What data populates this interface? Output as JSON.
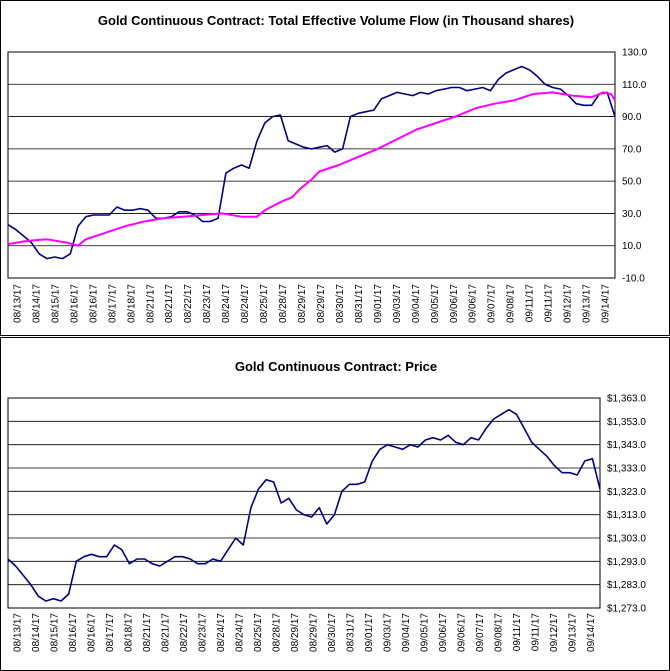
{
  "chart_data": [
    {
      "type": "line",
      "title": "Gold Continuous Contract: Total Effective Volume Flow (in Thousand shares)",
      "ylim": [
        -10,
        130
      ],
      "yticks": [
        -10,
        10,
        30,
        50,
        70,
        90,
        110,
        130
      ],
      "ytick_labels": [
        "-10.0",
        "10.0",
        "30.0",
        "50.0",
        "70.0",
        "90.0",
        "110.0",
        "130.0"
      ],
      "x_tick_labels": [
        "08/13/17",
        "08/14/17",
        "08/15/17",
        "08/16/17",
        "08/16/17",
        "08/17/17",
        "08/18/17",
        "08/21/17",
        "08/21/17",
        "08/22/17",
        "08/23/17",
        "08/24/17",
        "08/24/17",
        "08/25/17",
        "08/28/17",
        "08/29/17",
        "08/29/17",
        "08/30/17",
        "08/31/17",
        "09/01/17",
        "09/03/17",
        "09/04/17",
        "09/05/17",
        "09/06/17",
        "09/06/17",
        "09/07/17",
        "09/08/17",
        "09/11/17",
        "09/11/17",
        "09/12/17",
        "09/13/17",
        "09/14/17"
      ],
      "grid": true,
      "series": [
        {
          "color": "#000080",
          "x": [
            0,
            0.4,
            0.8,
            1.2,
            1.6,
            2.0,
            2.4,
            2.8,
            3.2,
            3.6,
            4.0,
            4.4,
            4.8,
            5.2,
            5.6,
            6.0,
            6.4,
            6.8,
            7.2,
            7.6,
            8.0,
            8.4,
            8.8,
            9.2,
            9.6,
            10.0,
            10.4,
            10.8,
            11.2,
            11.6,
            12.0,
            12.4,
            12.8,
            13.2,
            13.6,
            14.0,
            14.4,
            14.8,
            15.2,
            15.6,
            16.0,
            16.4,
            16.8,
            17.2,
            17.6,
            18.0,
            18.4,
            18.8,
            19.2,
            19.6,
            20.0,
            20.4,
            20.8,
            21.2,
            21.6,
            22.0,
            22.4,
            22.8,
            23.2,
            23.6,
            24.0,
            24.4,
            24.8,
            25.2,
            25.6,
            26.0,
            26.4,
            26.8,
            27.2,
            27.6,
            28.0,
            28.4,
            28.8,
            29.2,
            29.6,
            30.0,
            30.4,
            30.8,
            31.2
          ],
          "values": [
            23,
            20,
            16,
            12,
            5,
            2,
            3,
            2,
            5,
            22,
            28,
            29,
            29,
            29,
            34,
            32,
            32,
            33,
            32,
            27,
            27,
            28,
            31,
            31,
            29,
            25,
            25,
            27,
            55,
            58,
            60,
            58,
            75,
            86,
            90,
            91,
            75,
            73,
            71,
            70,
            71,
            72,
            68,
            70,
            90,
            92,
            93,
            94,
            101,
            103,
            105,
            104,
            103,
            105,
            104,
            106,
            107,
            108,
            108,
            106,
            107,
            108,
            106,
            113,
            117,
            119,
            121,
            119,
            115,
            110,
            108,
            107,
            103,
            98,
            97,
            97,
            104,
            105,
            90
          ]
        },
        {
          "color": "#ff00ff",
          "x": [
            0,
            1,
            2,
            3,
            3.6,
            4,
            5,
            6,
            7,
            8,
            9,
            10,
            11,
            12,
            12.8,
            13.2,
            14,
            14.6,
            15,
            15.6,
            16,
            17,
            18,
            19,
            20,
            21,
            22,
            23,
            24,
            25,
            26,
            27,
            28,
            29,
            30,
            30.6,
            31,
            31.2
          ],
          "values": [
            11,
            13,
            14,
            12,
            10,
            14,
            18,
            22,
            25,
            27,
            28,
            29,
            30,
            28,
            28,
            32,
            37,
            40,
            45,
            51,
            56,
            60,
            65,
            70,
            76,
            82,
            86,
            90,
            95,
            98,
            100,
            104,
            105,
            103,
            102,
            105,
            104,
            100
          ]
        }
      ]
    },
    {
      "type": "line",
      "title": "Gold Continuous Contract: Price",
      "ylim": [
        1273,
        1363
      ],
      "yticks": [
        1273,
        1283,
        1293,
        1303,
        1313,
        1323,
        1333,
        1343,
        1353,
        1363
      ],
      "ytick_labels": [
        "$1,273.0",
        "$1,283.0",
        "$1,293.0",
        "$1,303.0",
        "$1,313.0",
        "$1,323.0",
        "$1,333.0",
        "$1,343.0",
        "$1,353.0",
        "$1,363.0"
      ],
      "x_tick_labels": [
        "08/13/17",
        "08/14/17",
        "08/15/17",
        "08/16/17",
        "08/16/17",
        "08/17/17",
        "08/18/17",
        "08/21/17",
        "08/21/17",
        "08/22/17",
        "08/23/17",
        "08/24/17",
        "08/24/17",
        "08/25/17",
        "08/28/17",
        "08/29/17",
        "08/29/17",
        "08/30/17",
        "08/31/17",
        "09/01/17",
        "09/03/17",
        "09/04/17",
        "09/05/17",
        "09/06/17",
        "09/06/17",
        "09/07/17",
        "09/08/17",
        "09/11/17",
        "09/11/17",
        "09/12/17",
        "09/13/17",
        "09/14/17"
      ],
      "grid": true,
      "series": [
        {
          "color": "#000080",
          "x": [
            0,
            0.4,
            0.8,
            1.2,
            1.6,
            2.0,
            2.4,
            2.8,
            3.2,
            3.6,
            4.0,
            4.4,
            4.8,
            5.2,
            5.6,
            6.0,
            6.4,
            6.8,
            7.2,
            7.6,
            8.0,
            8.4,
            8.8,
            9.2,
            9.6,
            10.0,
            10.4,
            10.8,
            11.2,
            11.6,
            12.0,
            12.4,
            12.8,
            13.2,
            13.6,
            14.0,
            14.4,
            14.8,
            15.2,
            15.6,
            16.0,
            16.4,
            16.8,
            17.2,
            17.6,
            18.0,
            18.4,
            18.8,
            19.2,
            19.6,
            20.0,
            20.4,
            20.8,
            21.2,
            21.6,
            22.0,
            22.4,
            22.8,
            23.2,
            23.6,
            24.0,
            24.4,
            24.8,
            25.2,
            25.6,
            26.0,
            26.4,
            26.8,
            27.2,
            27.6,
            28.0,
            28.4,
            28.8,
            29.2,
            29.6,
            30.0,
            30.4,
            30.8,
            31.2
          ],
          "values": [
            1294,
            1291,
            1287,
            1283,
            1278,
            1276,
            1277,
            1276,
            1279,
            1293,
            1295,
            1296,
            1295,
            1295,
            1300,
            1298,
            1292,
            1294,
            1294,
            1292,
            1291,
            1293,
            1295,
            1295,
            1294,
            1292,
            1292,
            1294,
            1293,
            1298,
            1303,
            1300,
            1316,
            1324,
            1328,
            1327,
            1318,
            1320,
            1315,
            1313,
            1312,
            1316,
            1309,
            1313,
            1323,
            1326,
            1326,
            1327,
            1336,
            1341,
            1343,
            1342,
            1341,
            1343,
            1342,
            1345,
            1346,
            1345,
            1347,
            1344,
            1343,
            1346,
            1345,
            1350,
            1354,
            1356,
            1358,
            1356,
            1350,
            1344,
            1341,
            1338,
            1334,
            1331,
            1331,
            1330,
            1336,
            1337,
            1324
          ]
        }
      ]
    }
  ]
}
